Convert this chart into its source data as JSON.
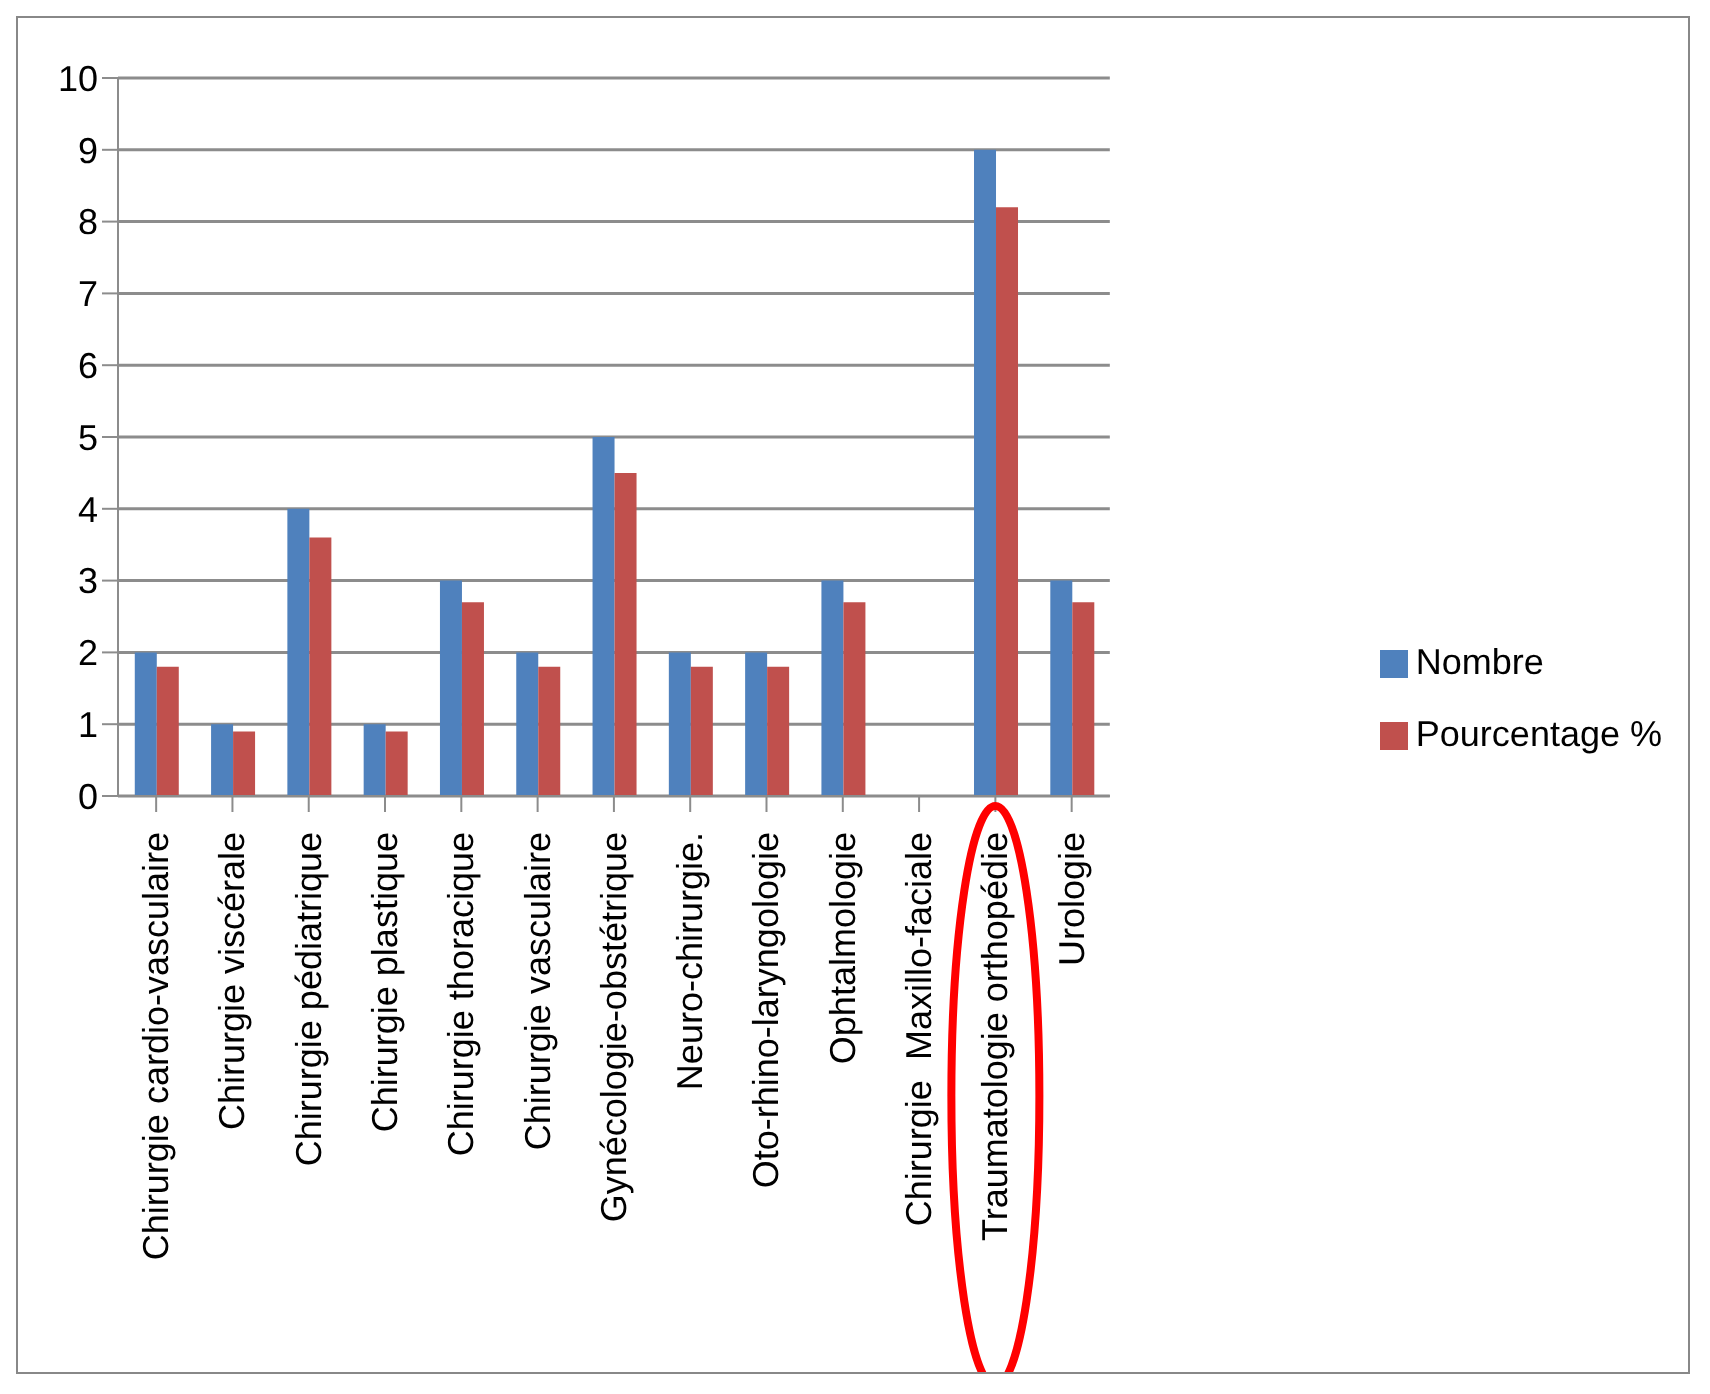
{
  "chart_data": {
    "type": "bar",
    "categories": [
      "Chirurgie cardio-vasculaire",
      "Chirurgie viscérale",
      "Chirurgie pédiatrique",
      "Chirurgie plastique",
      "Chirurgie thoracique",
      "Chirurgie vasculaire",
      "Gynécologie-obstétrique",
      "Neuro-chirurgie.",
      "Oto-rhino-laryngologie",
      "Ophtalmologie",
      "Chirurgie  Maxillo-faciale",
      "Traumatologie orthopédie",
      "Urologie"
    ],
    "series": [
      {
        "name": "Nombre",
        "color": "#4f81bd",
        "values": [
          2,
          1,
          4,
          1,
          3,
          2,
          5,
          2,
          2,
          3,
          null,
          9,
          3
        ]
      },
      {
        "name": "Pourcentage %",
        "color": "#c0504d",
        "values": [
          1.8,
          0.9,
          3.6,
          0.9,
          2.7,
          1.8,
          4.5,
          1.8,
          1.8,
          2.7,
          null,
          8.2,
          2.7
        ]
      }
    ],
    "ylim": [
      0,
      10
    ],
    "yticks": [
      0,
      1,
      2,
      3,
      4,
      5,
      6,
      7,
      8,
      9,
      10
    ],
    "grid": "y",
    "legend": "right"
  }
}
